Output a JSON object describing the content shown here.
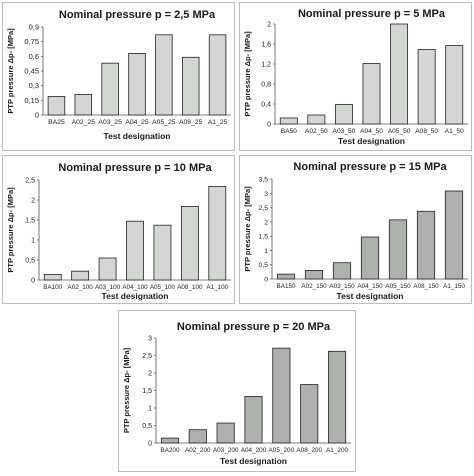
{
  "figure": {
    "colors": {
      "bar_light": "#d4d6d3",
      "bar_mid": "#aeb0ae",
      "bar_stroke": "#222222",
      "frame": "#bdbdbd"
    }
  },
  "chart_data": [
    {
      "type": "bar",
      "title": "Nominal pressure p = 2,5 MPa",
      "xlabel": "Test designation",
      "ylabel": "PTP pressure Δp- [MPa]",
      "categories": [
        "BA25",
        "A02_25",
        "A03_25",
        "A04_25",
        "A05_25",
        "A08_25",
        "A1_25"
      ],
      "values": [
        0.19,
        0.21,
        0.53,
        0.63,
        0.82,
        0.59,
        0.82
      ],
      "ylim": [
        0,
        0.9
      ],
      "yticks": [
        "0",
        "0,15",
        "0,3",
        "0,45",
        "0,6",
        "0,75",
        "0,9"
      ],
      "grid": false
    },
    {
      "type": "bar",
      "title": "Nominal pressure  p = 5 MPa",
      "xlabel": "Test designation",
      "ylabel": "PTP pressure Δp- [MPa]",
      "categories": [
        "BA50",
        "A02_50",
        "A03_50",
        "A04_50",
        "A05_50",
        "A08_50",
        "A1_50"
      ],
      "values": [
        0.12,
        0.18,
        0.39,
        1.21,
        2.0,
        1.49,
        1.57
      ],
      "ylim": [
        0,
        2
      ],
      "yticks": [
        "0",
        "0,4",
        "0,8",
        "1,2",
        "1,6",
        "2"
      ],
      "grid": false
    },
    {
      "type": "bar",
      "title": "Nominal pressure p = 10 MPa",
      "xlabel": "Test designation",
      "ylabel": "PTP pressure Δp- [MPa]",
      "categories": [
        "BA100",
        "A02_100",
        "A03_100",
        "A04_100",
        "A05_100",
        "A08_100",
        "A1_100"
      ],
      "values": [
        0.14,
        0.22,
        0.55,
        1.47,
        1.37,
        1.84,
        2.34
      ],
      "ylim": [
        0,
        2.5
      ],
      "yticks": [
        "0",
        "0,5",
        "1",
        "1,5",
        "2",
        "2,5"
      ],
      "grid": false
    },
    {
      "type": "bar",
      "title": "Nominal pressure p = 15 MPa",
      "xlabel": "Test designation",
      "ylabel": "PTP pressure Δp- [MPa]",
      "categories": [
        "BA150",
        "A02_150",
        "A03_150",
        "A04_150",
        "A05_150",
        "A08_150",
        "A1_150"
      ],
      "values": [
        0.17,
        0.3,
        0.57,
        1.47,
        2.07,
        2.37,
        3.08
      ],
      "ylim": [
        0,
        3.5
      ],
      "yticks": [
        "0",
        "0,5",
        "1",
        "1,5",
        "2",
        "2,5",
        "3",
        "3,5"
      ],
      "grid": false
    },
    {
      "type": "bar",
      "title": "Nominal pressure p = 20 MPa",
      "xlabel": "Test designation",
      "ylabel": "PTP pressure Δp- [MPa]",
      "categories": [
        "BA200",
        "A02_200",
        "A03_200",
        "A04_200",
        "A05_200",
        "A08_200",
        "A1_200"
      ],
      "values": [
        0.14,
        0.38,
        0.57,
        1.33,
        2.71,
        1.67,
        2.62
      ],
      "ylim": [
        0,
        3
      ],
      "yticks": [
        "0",
        "0,5",
        "1",
        "1,5",
        "2",
        "2,5",
        "3"
      ],
      "grid": false
    }
  ]
}
